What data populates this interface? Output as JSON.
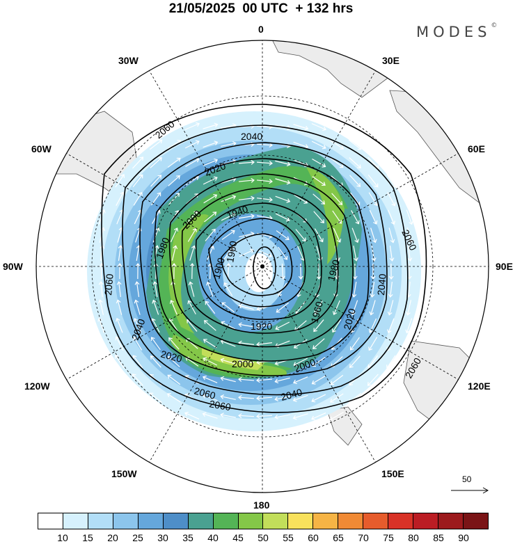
{
  "title": "21/05/2025  00 UTC  + 132 hrs",
  "brand": "MODES",
  "brand_mark": "©",
  "longitude_labels": {
    "top": "0",
    "bottom": "180",
    "left": "90W",
    "right": "90E",
    "nw30": "30W",
    "nw60": "60W",
    "ne30": "30E",
    "ne60": "60E",
    "sw120": "120W",
    "sw150": "150W",
    "se120": "120E",
    "se150": "150E"
  },
  "contour_labels": [
    "2060",
    "2040",
    "2020",
    "2000",
    "1940",
    "1980",
    "1900",
    "1920",
    "1960",
    "1980",
    "2000",
    "2020",
    "2040",
    "2060",
    "2060",
    "2040",
    "2020",
    "2000",
    "2060",
    "2040",
    "2060",
    "2060",
    "1960"
  ],
  "reference_vector": {
    "label": "50"
  },
  "colorbar": {
    "ticks": [
      "10",
      "15",
      "20",
      "25",
      "30",
      "35",
      "40",
      "45",
      "50",
      "55",
      "60",
      "65",
      "70",
      "75",
      "80",
      "85",
      "90"
    ],
    "colors": [
      "#ffffff",
      "#d6f1fd",
      "#b2def7",
      "#8cc5ec",
      "#65a7dc",
      "#4e8ec8",
      "#4aa191",
      "#54b456",
      "#84c748",
      "#c2de5a",
      "#f8e15c",
      "#f6b445",
      "#f08a35",
      "#e65c2c",
      "#d83227",
      "#bb1d24",
      "#9c1a1d",
      "#7a1416"
    ]
  }
}
